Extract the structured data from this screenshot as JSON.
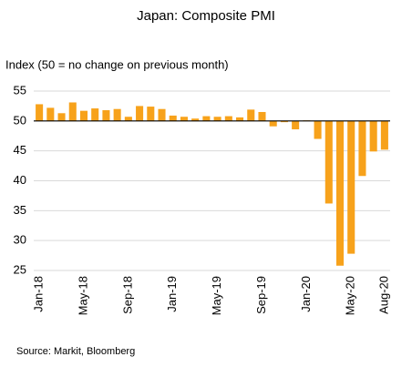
{
  "chart_data": {
    "type": "bar",
    "title": "Japan: Composite PMI",
    "subtitle": "Index (50 = no change on previous month)",
    "source": "Source: Markit, Bloomberg",
    "categories": [
      "Jan-18",
      null,
      null,
      null,
      "May-18",
      null,
      null,
      null,
      "Sep-18",
      null,
      null,
      null,
      "Jan-19",
      null,
      null,
      null,
      "May-19",
      null,
      null,
      null,
      "Sep-19",
      null,
      null,
      null,
      "Jan-20",
      null,
      null,
      null,
      "May-20",
      null,
      null,
      "Aug-20"
    ],
    "values": [
      52.8,
      52.2,
      51.3,
      53.1,
      51.7,
      52.1,
      51.8,
      52.0,
      50.7,
      52.5,
      52.4,
      52.0,
      50.9,
      50.7,
      50.4,
      50.8,
      50.7,
      50.8,
      50.6,
      51.9,
      51.5,
      49.1,
      49.8,
      48.6,
      50.1,
      47.0,
      36.2,
      25.8,
      27.8,
      40.8,
      44.9,
      45.2
    ],
    "color": "#f7a21b",
    "baseline": 50,
    "ylim": [
      25,
      55
    ],
    "yticks": [
      25,
      30,
      35,
      40,
      45,
      50,
      55
    ],
    "grid": true
  }
}
